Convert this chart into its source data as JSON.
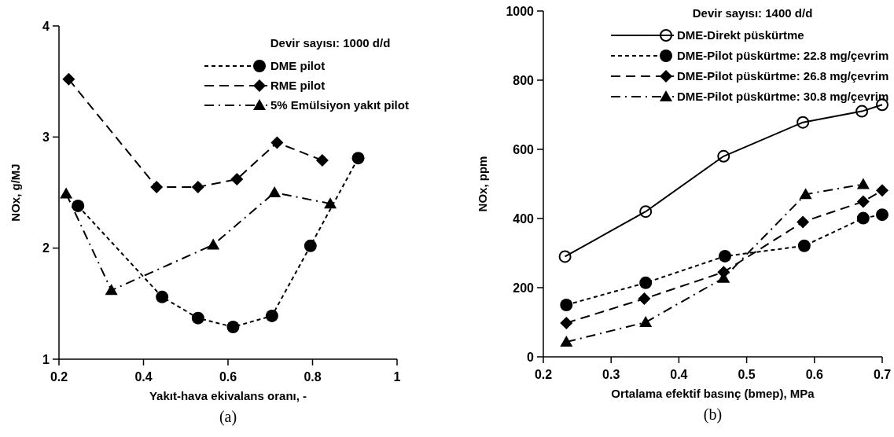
{
  "chart_data": [
    {
      "type": "line",
      "xlabel": "Yakıt-hava ekivalans oranı, -",
      "ylabel": "NOx, g/MJ",
      "legend_title": "Devir sayısı: 1000 d/d",
      "legend": "top right",
      "grid": false,
      "xlim": [
        0.2,
        1
      ],
      "xticks": [
        0.2,
        0.4,
        0.6,
        0.8,
        1
      ],
      "ylim": [
        1,
        4
      ],
      "yticks": [
        1,
        2,
        3,
        4
      ],
      "annotations": [
        "(a)"
      ],
      "series": [
        {
          "name": "DME pilot",
          "color": "#000000",
          "marker": "circle",
          "line_style": "dotted",
          "x": [
            0.245,
            0.444,
            0.529,
            0.612,
            0.704,
            0.795,
            0.908
          ],
          "values": [
            2.38,
            1.56,
            1.37,
            1.29,
            1.39,
            2.02,
            2.81
          ]
        },
        {
          "name": "RME pilot",
          "color": "#000000",
          "marker": "diamond",
          "line_style": "dashed",
          "x": [
            0.223,
            0.431,
            0.529,
            0.621,
            0.716,
            0.823
          ],
          "values": [
            3.52,
            2.55,
            2.55,
            2.62,
            2.95,
            2.79
          ]
        },
        {
          "name": "5% Emülsiyon yakıt pilot",
          "color": "#000000",
          "marker": "triangle",
          "line_style": "dashdot",
          "x": [
            0.217,
            0.324,
            0.565,
            0.71,
            0.842
          ],
          "values": [
            2.49,
            1.62,
            2.03,
            2.5,
            2.4
          ]
        }
      ]
    },
    {
      "type": "line",
      "xlabel": "Ortalama efektif basınç (bmep), MPa",
      "ylabel": "NOx, ppm",
      "legend_title": "Devir sayısı: 1400 d/d",
      "legend": "top right",
      "grid": false,
      "xlim": [
        0.2,
        0.7
      ],
      "xticks": [
        0.2,
        0.3,
        0.4,
        0.5,
        0.6,
        0.7
      ],
      "ylim": [
        0,
        1000
      ],
      "yticks": [
        0,
        200,
        400,
        600,
        800,
        1000
      ],
      "annotations": [
        "(b)"
      ],
      "series": [
        {
          "name": "DME-Direkt püskürtme",
          "color": "#000000",
          "marker": "circle-open",
          "line_style": "solid",
          "x": [
            0.232,
            0.351,
            0.466,
            0.583,
            0.67,
            0.7
          ],
          "values": [
            290,
            420,
            580,
            678,
            710,
            729
          ]
        },
        {
          "name": "DME-Pilot püskürtme: 22.8 mg/çevrim",
          "color": "#000000",
          "marker": "circle",
          "line_style": "dotted",
          "x": [
            0.234,
            0.351,
            0.468,
            0.585,
            0.672,
            0.7
          ],
          "values": [
            150,
            214,
            291,
            321,
            401,
            411
          ]
        },
        {
          "name": "DME-Pilot püskürtme: 26.8 mg/çevrim",
          "color": "#000000",
          "marker": "diamond",
          "line_style": "dashed",
          "x": [
            0.234,
            0.349,
            0.466,
            0.583,
            0.672,
            0.7
          ],
          "values": [
            98,
            168,
            245,
            390,
            449,
            481
          ]
        },
        {
          "name": "DME-Pilot püskürtme: 30.8 mg/çevrim",
          "color": "#000000",
          "marker": "triangle",
          "line_style": "dashdot",
          "x": [
            0.234,
            0.351,
            0.466,
            0.587,
            0.672
          ],
          "values": [
            43,
            100,
            228,
            470,
            499
          ]
        }
      ]
    }
  ]
}
